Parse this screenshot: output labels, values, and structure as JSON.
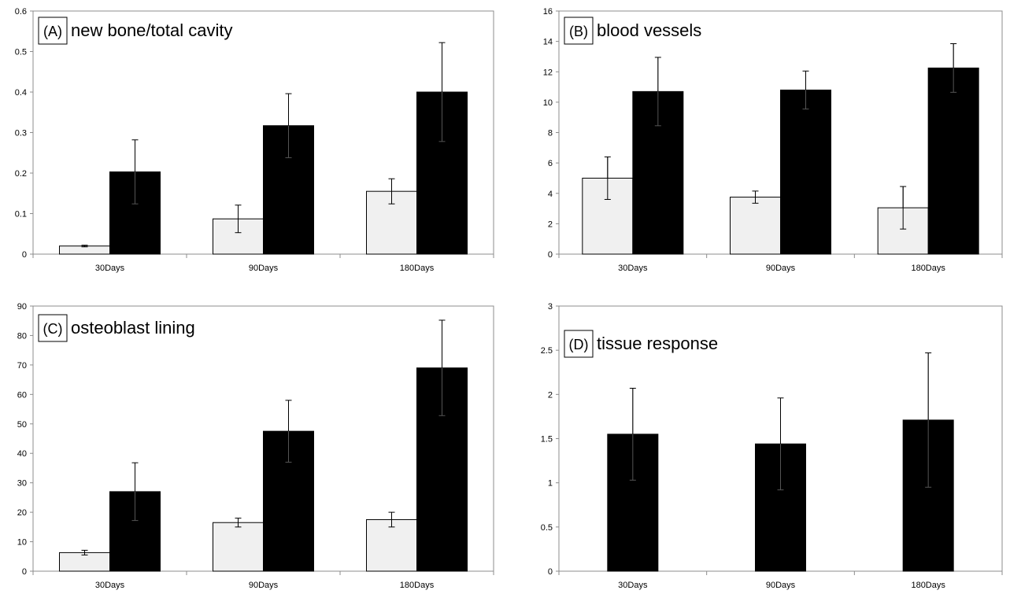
{
  "chart_data": [
    {
      "type": "bar",
      "title": "new bone/total cavity",
      "panel_label": "(A)",
      "categories": [
        "30Days",
        "90Days",
        "180Days"
      ],
      "ylim": [
        0,
        0.6
      ],
      "yticks": [
        0,
        0.1,
        0.2,
        0.3,
        0.4,
        0.5,
        0.6
      ],
      "grid": false,
      "series": [
        {
          "color": "#f0f0f0",
          "values": [
            0.02,
            0.087,
            0.155
          ],
          "errors": [
            0.002,
            0.034,
            0.031
          ]
        },
        {
          "color": "#000000",
          "values": [
            0.203,
            0.317,
            0.4
          ],
          "errors": [
            0.079,
            0.079,
            0.122
          ]
        }
      ]
    },
    {
      "type": "bar",
      "title": "blood vessels",
      "panel_label": "(B)",
      "categories": [
        "30Days",
        "90Days",
        "180Days"
      ],
      "ylim": [
        0,
        16
      ],
      "yticks": [
        0,
        2,
        4,
        6,
        8,
        10,
        12,
        14,
        16
      ],
      "grid": false,
      "series": [
        {
          "color": "#f0f0f0",
          "values": [
            5.0,
            3.75,
            3.05
          ],
          "errors": [
            1.4,
            0.4,
            1.4
          ]
        },
        {
          "color": "#000000",
          "values": [
            10.7,
            10.8,
            12.25
          ],
          "errors": [
            2.25,
            1.25,
            1.6
          ]
        }
      ]
    },
    {
      "type": "bar",
      "title": "osteoblast lining",
      "panel_label": "(C)",
      "categories": [
        "30Days",
        "90Days",
        "180Days"
      ],
      "ylim": [
        0,
        90
      ],
      "yticks": [
        0,
        10,
        20,
        30,
        40,
        50,
        60,
        70,
        80,
        90
      ],
      "grid": false,
      "series": [
        {
          "color": "#f0f0f0",
          "values": [
            6.3,
            16.5,
            17.5
          ],
          "errors": [
            0.8,
            1.5,
            2.5
          ]
        },
        {
          "color": "#000000",
          "values": [
            27.0,
            47.5,
            69.0
          ],
          "errors": [
            9.8,
            10.5,
            16.2
          ]
        }
      ]
    },
    {
      "type": "bar",
      "title": "tissue response",
      "panel_label": "(D)",
      "categories": [
        "30Days",
        "90Days",
        "180Days"
      ],
      "ylim": [
        0,
        3
      ],
      "yticks": [
        0,
        0.5,
        1,
        1.5,
        2,
        2.5,
        3
      ],
      "grid": false,
      "series": [
        {
          "color": "#000000",
          "values": [
            1.55,
            1.44,
            1.71
          ],
          "errors": [
            0.52,
            0.52,
            0.76
          ]
        }
      ]
    }
  ]
}
